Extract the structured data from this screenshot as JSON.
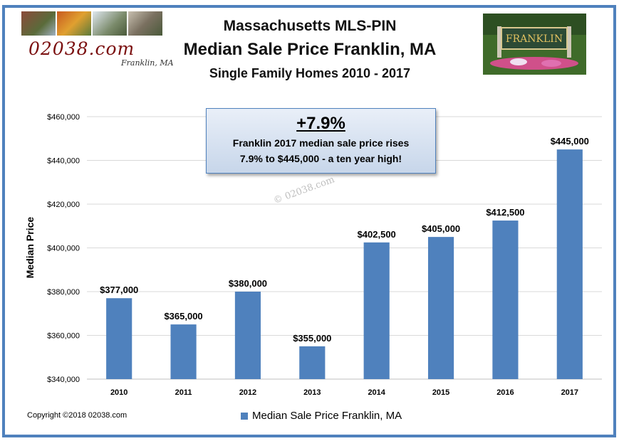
{
  "header": {
    "title_line1": "Massachusetts MLS-PIN",
    "title_line2": "Median Sale Price Franklin, MA",
    "title_line3": "Single Family Homes 2010 - 2017"
  },
  "logo": {
    "site": "02038.com",
    "sub": "Franklin, MA"
  },
  "callout": {
    "headline": "+7.9%",
    "line1": "Franklin 2017 median sale price rises",
    "line2": "7.9% to $445,000 - a ten year high!"
  },
  "watermark": "© 02038.com",
  "footer": {
    "copyright": "Copyright ©2018 02038.com"
  },
  "chart_data": {
    "type": "bar",
    "categories": [
      "2010",
      "2011",
      "2012",
      "2013",
      "2014",
      "2015",
      "2016",
      "2017"
    ],
    "series": [
      {
        "name": "Median Sale Price Franklin, MA",
        "values": [
          377000,
          365000,
          380000,
          355000,
          402500,
          405000,
          412500,
          445000
        ],
        "color": "#4f81bd"
      }
    ],
    "data_labels": [
      "$377,000",
      "$365,000",
      "$380,000",
      "$355,000",
      "$402,500",
      "$405,000",
      "$412,500",
      "$445,000"
    ],
    "ylabel": "Median Price",
    "xlabel": "",
    "ylim": [
      340000,
      460000
    ],
    "yticks": [
      340000,
      360000,
      380000,
      400000,
      420000,
      440000,
      460000
    ],
    "ytick_labels": [
      "$340,000",
      "$360,000",
      "$380,000",
      "$400,000",
      "$420,000",
      "$440,000",
      "$460,000"
    ],
    "grid": true,
    "legend": "bottom"
  },
  "colors": {
    "frame": "#4f81bd",
    "bar": "#4f81bd",
    "grid": "#d9d9d9",
    "logo_text": "#7b1010"
  }
}
